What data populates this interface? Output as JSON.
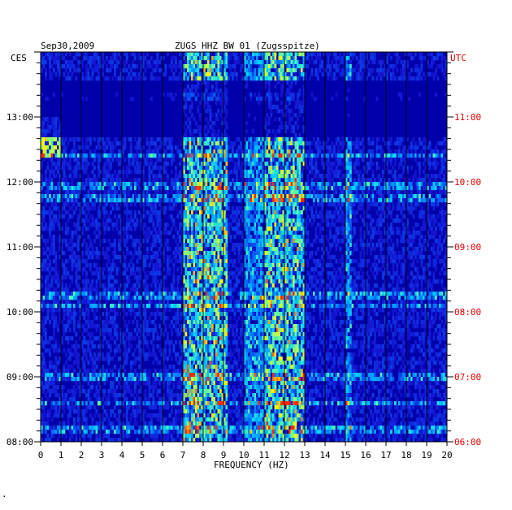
{
  "chart_data": {
    "type": "heatmap",
    "header": {
      "date": "Sep30,2009",
      "station": "ZUGS HHZ BW 01 (Zugsspitze)"
    },
    "left_timezone": "CES",
    "right_timezone": "UTC",
    "xlabel": "FREQUENCY (HZ)",
    "xlim": [
      0,
      20
    ],
    "x_ticks": [
      "0",
      "1",
      "2",
      "3",
      "4",
      "5",
      "6",
      "7",
      "8",
      "9",
      "10",
      "11",
      "12",
      "13",
      "14",
      "15",
      "16",
      "17",
      "18",
      "19",
      "20"
    ],
    "left_time_labels": [
      {
        "label": "13:00",
        "hour": 13
      },
      {
        "label": "12:00",
        "hour": 12
      },
      {
        "label": "11:00",
        "hour": 11
      },
      {
        "label": "10:00",
        "hour": 10
      },
      {
        "label": "09:00",
        "hour": 9
      },
      {
        "label": "08:00",
        "hour": 8
      }
    ],
    "right_time_labels": [
      {
        "label": "11:00",
        "hour": 13
      },
      {
        "label": "10:00",
        "hour": 12
      },
      {
        "label": "09:00",
        "hour": 11
      },
      {
        "label": "08:00",
        "hour": 10
      },
      {
        "label": "07:00",
        "hour": 9
      },
      {
        "label": "06:00",
        "hour": 8
      }
    ],
    "time_range_local": [
      8.0,
      14.0
    ],
    "colors": {
      "background": "#0000aa",
      "low": "#1515c8",
      "mid": "#00a0ff",
      "high": "#ffff00",
      "peak": "#ff2000",
      "utc_label": "#dd0000",
      "axis_text": "#000000"
    },
    "energy_bands_hz": [
      {
        "from": 7.0,
        "to": 8.0,
        "intensity": "high"
      },
      {
        "from": 8.0,
        "to": 9.2,
        "intensity": "high"
      },
      {
        "from": 10.0,
        "to": 11.0,
        "intensity": "mid"
      },
      {
        "from": 11.0,
        "to": 13.0,
        "intensity": "high"
      },
      {
        "from": 15.0,
        "to": 15.3,
        "intensity": "mid"
      }
    ],
    "horizontal_events_local": [
      8.2,
      8.6,
      9.0,
      10.1,
      10.25,
      11.75,
      11.95,
      12.4,
      13.3
    ]
  },
  "footer_mark": "."
}
